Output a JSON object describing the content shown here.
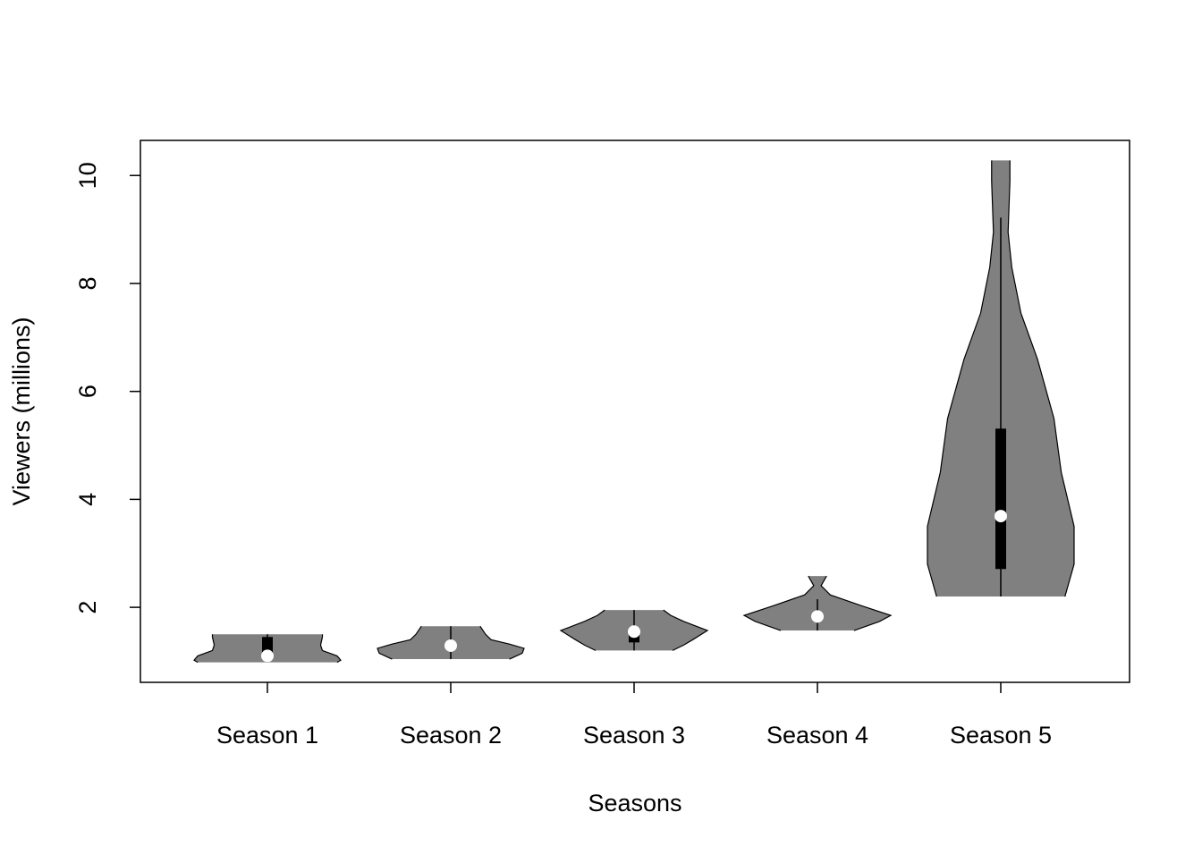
{
  "chart_data": {
    "type": "violin",
    "x_label": "Seasons",
    "y_label": "Viewers (millions)",
    "categories": [
      "Season 1",
      "Season 2",
      "Season 3",
      "Season 4",
      "Season 5"
    ],
    "color": "#808080",
    "ylim": [
      0.61,
      10.65
    ],
    "yticks": [
      2,
      4,
      6,
      8,
      10
    ],
    "violins": [
      {
        "profile_y": [
          0.98,
          1.02,
          1.1,
          1.2,
          1.3,
          1.45,
          1.5
        ],
        "profile_width": [
          0.38,
          0.4,
          0.38,
          0.3,
          0.29,
          0.3,
          0.3
        ],
        "whisker": [
          0.98,
          1.5
        ],
        "q1": 1.1,
        "median": 1.1,
        "q3": 1.45
      },
      {
        "profile_y": [
          1.04,
          1.15,
          1.24,
          1.32,
          1.4,
          1.5,
          1.65
        ],
        "profile_width": [
          0.32,
          0.39,
          0.4,
          0.32,
          0.22,
          0.19,
          0.16
        ],
        "whisker": [
          1.04,
          1.65
        ],
        "q1": 1.25,
        "median": 1.29,
        "q3": 1.35
      },
      {
        "profile_y": [
          1.2,
          1.3,
          1.4,
          1.57,
          1.74,
          1.85,
          1.95
        ],
        "profile_width": [
          0.21,
          0.27,
          0.32,
          0.4,
          0.27,
          0.2,
          0.16
        ],
        "whisker": [
          1.2,
          1.95
        ],
        "q1": 1.35,
        "median": 1.55,
        "q3": 1.6
      },
      {
        "profile_y": [
          1.57,
          1.74,
          1.85,
          2.03,
          2.23,
          2.4,
          2.58
        ],
        "profile_width": [
          0.2,
          0.34,
          0.4,
          0.24,
          0.07,
          0.02,
          0.05
        ],
        "whisker": [
          1.57,
          2.15
        ],
        "q1": 1.8,
        "median": 1.83,
        "q3": 1.85
      },
      {
        "profile_y": [
          2.2,
          2.8,
          3.5,
          4.5,
          5.5,
          6.6,
          7.45,
          8.3,
          8.95,
          9.9,
          10.28
        ],
        "profile_width": [
          0.35,
          0.4,
          0.4,
          0.33,
          0.29,
          0.2,
          0.11,
          0.06,
          0.04,
          0.05,
          0.05
        ],
        "whisker": [
          2.2,
          9.22
        ],
        "q1": 2.71,
        "median": 3.69,
        "q3": 5.31
      }
    ]
  }
}
